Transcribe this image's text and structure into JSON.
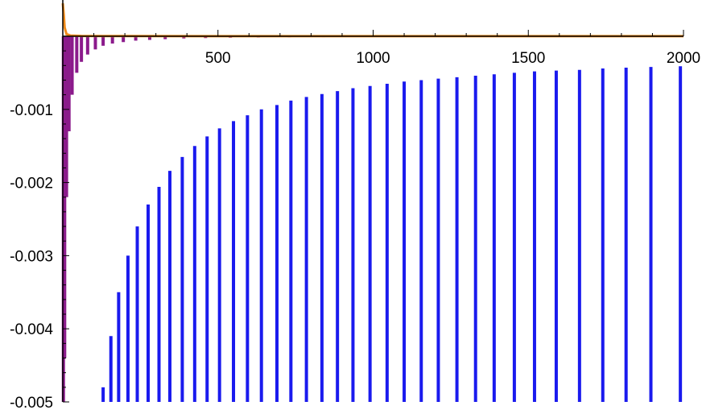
{
  "chart_data": {
    "type": "bar",
    "title": "",
    "xlabel": "",
    "ylabel": "",
    "xlim": [
      0,
      2000
    ],
    "ylim": [
      -0.005,
      0.00045
    ],
    "grid": false,
    "legend": "none",
    "x_ticks": [
      {
        "value": 500,
        "label": "500"
      },
      {
        "value": 1000,
        "label": "1000"
      },
      {
        "value": 1500,
        "label": "1500"
      },
      {
        "value": 2000,
        "label": "2000"
      }
    ],
    "y_ticks": [
      {
        "value": -0.001,
        "label": "-0.001"
      },
      {
        "value": -0.002,
        "label": "-0.002"
      },
      {
        "value": -0.003,
        "label": "-0.003"
      },
      {
        "value": -0.004,
        "label": "-0.004"
      },
      {
        "value": -0.005,
        "label": "-0.005"
      }
    ],
    "series": [
      {
        "color": "#1a1aee",
        "style": "vertical-sticks",
        "points": [
          {
            "x": 130,
            "y": -0.005,
            "top": -0.0048
          },
          {
            "x": 155,
            "y": -0.005,
            "top": -0.0041
          },
          {
            "x": 180,
            "y": -0.005,
            "top": -0.0035
          },
          {
            "x": 210,
            "y": -0.005,
            "top": -0.003
          },
          {
            "x": 240,
            "y": -0.005,
            "top": -0.0026
          },
          {
            "x": 275,
            "y": -0.005,
            "top": -0.0023
          },
          {
            "x": 310,
            "y": -0.005,
            "top": -0.00206
          },
          {
            "x": 345,
            "y": -0.005,
            "top": -0.00184
          },
          {
            "x": 385,
            "y": -0.005,
            "top": -0.00165
          },
          {
            "x": 425,
            "y": -0.005,
            "top": -0.0015
          },
          {
            "x": 465,
            "y": -0.005,
            "top": -0.00137
          },
          {
            "x": 505,
            "y": -0.005,
            "top": -0.00126
          },
          {
            "x": 550,
            "y": -0.005,
            "top": -0.00116
          },
          {
            "x": 595,
            "y": -0.005,
            "top": -0.00108
          },
          {
            "x": 640,
            "y": -0.005,
            "top": -0.001
          },
          {
            "x": 690,
            "y": -0.005,
            "top": -0.00094
          },
          {
            "x": 735,
            "y": -0.005,
            "top": -0.00088
          },
          {
            "x": 785,
            "y": -0.005,
            "top": -0.00083
          },
          {
            "x": 835,
            "y": -0.005,
            "top": -0.00079
          },
          {
            "x": 885,
            "y": -0.005,
            "top": -0.00075
          },
          {
            "x": 935,
            "y": -0.005,
            "top": -0.00071
          },
          {
            "x": 990,
            "y": -0.005,
            "top": -0.00068
          },
          {
            "x": 1045,
            "y": -0.005,
            "top": -0.00065
          },
          {
            "x": 1100,
            "y": -0.005,
            "top": -0.00062
          },
          {
            "x": 1155,
            "y": -0.005,
            "top": -0.0006
          },
          {
            "x": 1210,
            "y": -0.005,
            "top": -0.00058
          },
          {
            "x": 1270,
            "y": -0.005,
            "top": -0.00056
          },
          {
            "x": 1330,
            "y": -0.005,
            "top": -0.00054
          },
          {
            "x": 1390,
            "y": -0.005,
            "top": -0.00052
          },
          {
            "x": 1455,
            "y": -0.005,
            "top": -0.0005
          },
          {
            "x": 1520,
            "y": -0.005,
            "top": -0.00048
          },
          {
            "x": 1590,
            "y": -0.005,
            "top": -0.00047
          },
          {
            "x": 1665,
            "y": -0.005,
            "top": -0.00046
          },
          {
            "x": 1740,
            "y": -0.005,
            "top": -0.00044
          },
          {
            "x": 1815,
            "y": -0.005,
            "top": -0.00043
          },
          {
            "x": 1895,
            "y": -0.005,
            "top": -0.00042
          },
          {
            "x": 1990,
            "y": -0.005,
            "top": -0.00041
          }
        ]
      },
      {
        "color": "#8b1a8b",
        "style": "sticks-from-axis",
        "points": [
          {
            "x": 2,
            "y": -0.005
          },
          {
            "x": 6,
            "y": -0.0044
          },
          {
            "x": 12,
            "y": -0.0022
          },
          {
            "x": 20,
            "y": -0.0013
          },
          {
            "x": 30,
            "y": -0.0008
          },
          {
            "x": 45,
            "y": -0.0005
          },
          {
            "x": 60,
            "y": -0.00035
          },
          {
            "x": 80,
            "y": -0.00025
          },
          {
            "x": 105,
            "y": -0.00018
          },
          {
            "x": 130,
            "y": -0.00013
          },
          {
            "x": 160,
            "y": -0.0001
          },
          {
            "x": 195,
            "y": -8e-05
          },
          {
            "x": 235,
            "y": -6e-05
          },
          {
            "x": 280,
            "y": -5e-05
          },
          {
            "x": 330,
            "y": -4e-05
          },
          {
            "x": 390,
            "y": -3e-05
          },
          {
            "x": 460,
            "y": -2.5e-05
          },
          {
            "x": 540,
            "y": -2e-05
          },
          {
            "x": 630,
            "y": -1.7e-05
          },
          {
            "x": 730,
            "y": -1.4e-05
          },
          {
            "x": 840,
            "y": -1.2e-05
          },
          {
            "x": 960,
            "y": -1e-05
          },
          {
            "x": 1090,
            "y": -9e-06
          },
          {
            "x": 1230,
            "y": -8e-06
          },
          {
            "x": 1380,
            "y": -7e-06
          },
          {
            "x": 1540,
            "y": -6e-06
          },
          {
            "x": 1710,
            "y": -5e-06
          },
          {
            "x": 1880,
            "y": -4e-06
          }
        ]
      },
      {
        "color": "#ee8a1a",
        "style": "line",
        "points": [
          {
            "x": 0,
            "y": 0.00045
          },
          {
            "x": 3,
            "y": 0.0003
          },
          {
            "x": 6,
            "y": 0.00012
          },
          {
            "x": 12,
            "y": 3e-05
          },
          {
            "x": 25,
            "y": 1e-05
          },
          {
            "x": 60,
            "y": 4e-06
          },
          {
            "x": 200,
            "y": 2e-06
          },
          {
            "x": 2000,
            "y": 1e-06
          }
        ]
      }
    ]
  }
}
